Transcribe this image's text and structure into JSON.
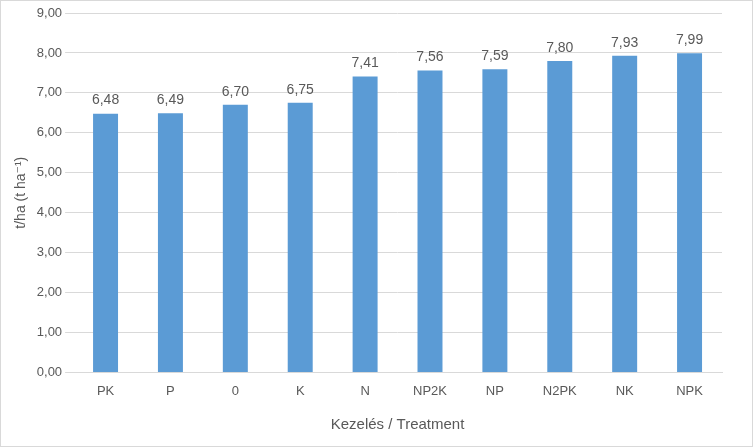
{
  "chart_data": {
    "type": "bar",
    "x_label": "Kezelés / Treatment",
    "y_label": "t/ha (t ha⁻¹)",
    "categories": [
      "PK",
      "P",
      "0",
      "K",
      "N",
      "NP2K",
      "NP",
      "N2PK",
      "NK",
      "NPK"
    ],
    "values": [
      6.48,
      6.49,
      6.7,
      6.75,
      7.41,
      7.56,
      7.59,
      7.8,
      7.93,
      7.99
    ],
    "value_labels": [
      "6,48",
      "6,49",
      "6,70",
      "6,75",
      "7,41",
      "7,56",
      "7,59",
      "7,80",
      "7,93",
      "7,99"
    ],
    "color": "#5b9bd5",
    "ylim": [
      0,
      9
    ],
    "yticks": [
      {
        "value": 0,
        "label": "0,00"
      },
      {
        "value": 1,
        "label": "1,00"
      },
      {
        "value": 2,
        "label": "2,00"
      },
      {
        "value": 3,
        "label": "3,00"
      },
      {
        "value": 4,
        "label": "4,00"
      },
      {
        "value": 5,
        "label": "5,00"
      },
      {
        "value": 6,
        "label": "6,00"
      },
      {
        "value": 7,
        "label": "7,00"
      },
      {
        "value": 8,
        "label": "8,00"
      },
      {
        "value": 9,
        "label": "9,00"
      }
    ],
    "grid": true,
    "data_labels": true
  }
}
